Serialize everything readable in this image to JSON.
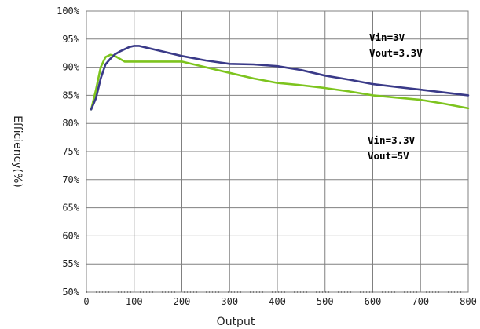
{
  "chart_data": {
    "type": "line",
    "title": "",
    "xlabel": "Output",
    "ylabel": "Efficiency(%)",
    "xlim": [
      0,
      800
    ],
    "ylim": [
      50,
      100
    ],
    "grid": true,
    "x_ticks": [
      "0",
      "100",
      "200",
      "300",
      "400",
      "500",
      "600",
      "700",
      "800"
    ],
    "y_ticks": [
      "50%",
      "55%",
      "60%",
      "65%",
      "70%",
      "75%",
      "80%",
      "85%",
      "90%",
      "95%",
      "100%"
    ],
    "series": [
      {
        "name": "Vin=3V Vout=3.3V",
        "color": "#3a3a88",
        "x": [
          10,
          20,
          30,
          40,
          50,
          60,
          70,
          80,
          90,
          100,
          110,
          120,
          150,
          200,
          250,
          300,
          350,
          400,
          450,
          500,
          550,
          600,
          650,
          700,
          750,
          800
        ],
        "y": [
          82.5,
          84.5,
          88.0,
          90.5,
          91.5,
          92.3,
          92.8,
          93.2,
          93.6,
          93.8,
          93.8,
          93.6,
          93.0,
          92.0,
          91.2,
          90.6,
          90.5,
          90.2,
          89.5,
          88.5,
          87.8,
          87.0,
          86.5,
          86.0,
          85.5,
          85.0
        ]
      },
      {
        "name": "Vin=3.3V Vout=5V",
        "color": "#7dc41e",
        "x": [
          10,
          20,
          30,
          40,
          50,
          60,
          70,
          80,
          90,
          100,
          150,
          200,
          250,
          300,
          350,
          400,
          450,
          500,
          550,
          600,
          650,
          700,
          750,
          800
        ],
        "y": [
          82.5,
          86.0,
          90.0,
          91.8,
          92.2,
          92.0,
          91.5,
          91.0,
          91.0,
          91.0,
          91.0,
          91.0,
          90.0,
          89.0,
          88.0,
          87.2,
          86.8,
          86.3,
          85.7,
          85.0,
          84.6,
          84.2,
          83.5,
          82.7
        ]
      }
    ],
    "annotations": [
      {
        "lines": [
          "Vin=3V",
          "Vout=3.3V"
        ]
      },
      {
        "lines": [
          "Vin=3.3V",
          "Vout=5V"
        ]
      }
    ]
  }
}
